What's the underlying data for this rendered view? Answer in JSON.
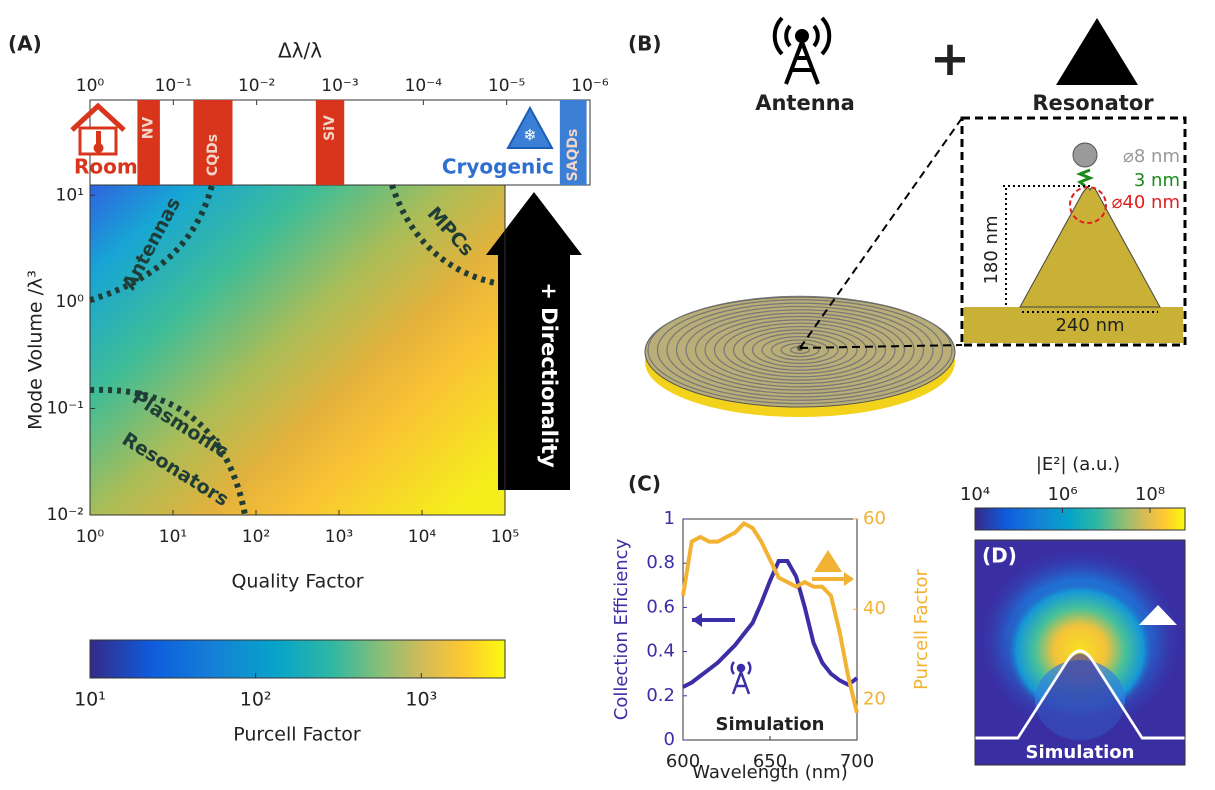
{
  "chart_data": [
    {
      "type": "heatmap",
      "panel": "(A)",
      "x_label": "Quality Factor",
      "y_label": "Mode Volume /λ³",
      "x_scale": "log",
      "y_scale": "log",
      "xlim": [
        1,
        100000
      ],
      "xticks": [
        {
          "value": 1,
          "label": "10⁰"
        },
        {
          "value": 10,
          "label": "10¹"
        },
        {
          "value": 100,
          "label": "10²"
        },
        {
          "value": 1000,
          "label": "10³"
        },
        {
          "value": 10000,
          "label": "10⁴"
        },
        {
          "value": 100000,
          "label": "10⁵"
        }
      ],
      "ylim": [
        0.01,
        12.5
      ],
      "yticks": [
        {
          "value": 0.01,
          "label": "10⁻²"
        },
        {
          "value": 0.1,
          "label": "10⁻¹"
        },
        {
          "value": 1,
          "label": "10⁰"
        },
        {
          "value": 10,
          "label": "10¹"
        }
      ],
      "x2_label": "Δλ/λ",
      "x2lim": [
        1,
        1e-06
      ],
      "x2ticks": [
        {
          "value": 1,
          "label": "10⁰"
        },
        {
          "value": 0.1,
          "label": "10⁻¹"
        },
        {
          "value": 0.01,
          "label": "10⁻²"
        },
        {
          "value": 0.001,
          "label": "10⁻³"
        },
        {
          "value": 0.0001,
          "label": "10⁻⁴"
        },
        {
          "value": 1e-05,
          "label": "10⁻⁵"
        },
        {
          "value": 1e-06,
          "label": "10⁻⁶"
        }
      ],
      "bands": [
        {
          "name": "NV",
          "color": "#d9341c",
          "range": [
            0.27,
            0.145
          ]
        },
        {
          "name": "CQDs",
          "color": "#d9341c",
          "range": [
            0.0575,
            0.0195
          ]
        },
        {
          "name": "SiV",
          "color": "#d9341c",
          "range": [
            0.00195,
            0.00089
          ]
        },
        {
          "name": "SAQDs",
          "color": "#3a7fd5",
          "range": [
            2.3e-06,
            1.1e-06
          ]
        }
      ],
      "band_labels": [
        "Room-T",
        "Cryogenic"
      ],
      "annotations": [
        "Antennas",
        "MPCs",
        "Plasmonic",
        "Resonators"
      ],
      "arrow_label": "+ Directionality",
      "colorbar": {
        "label": "Purcell Factor",
        "scale": "log",
        "lim": [
          10,
          3200
        ],
        "ticks": [
          {
            "value": 10,
            "label": "10¹"
          },
          {
            "value": 100,
            "label": "10²"
          },
          {
            "value": 1000,
            "label": "10³"
          }
        ]
      }
    },
    {
      "type": "line",
      "panel": "(C)",
      "x_label": "Wavelength (nm)",
      "y_label": "Collection Efficiency",
      "y2_label": "Purcell Factor",
      "annotation": "Simulation",
      "x": [
        600,
        605,
        610,
        615,
        620,
        625,
        630,
        635,
        640,
        645,
        650,
        655,
        660,
        665,
        670,
        675,
        680,
        685,
        690,
        695,
        700
      ],
      "xlim": [
        600,
        700
      ],
      "xticks": [
        600,
        650,
        700
      ],
      "ylim": [
        0,
        1
      ],
      "yticks": [
        0,
        0.2,
        0.4,
        0.6,
        0.8,
        1
      ],
      "y2lim": [
        11,
        60
      ],
      "y2ticks": [
        20,
        40,
        60
      ],
      "series": [
        {
          "name": "Collection Efficiency",
          "color": "#3b2ea6",
          "values": [
            0.24,
            0.26,
            0.29,
            0.32,
            0.35,
            0.39,
            0.43,
            0.48,
            0.53,
            0.62,
            0.72,
            0.81,
            0.81,
            0.74,
            0.6,
            0.44,
            0.35,
            0.3,
            0.27,
            0.25,
            0.28
          ]
        },
        {
          "name": "Purcell Factor",
          "color": "#f2b233",
          "axis": "y2",
          "values": [
            43,
            55,
            56,
            55,
            55,
            56,
            57,
            59,
            58,
            55,
            51,
            47,
            46,
            45,
            46,
            45,
            45,
            43,
            35,
            25,
            17
          ]
        }
      ]
    },
    {
      "type": "heatmap",
      "panel": "(D)",
      "annotation": "Simulation",
      "colorbar": {
        "label": "|E²| (a.u.)",
        "scale": "log",
        "lim": [
          10000,
          630000000
        ],
        "ticks": [
          {
            "value": 10000,
            "label": "10⁴"
          },
          {
            "value": 1000000,
            "label": "10⁶"
          },
          {
            "value": 100000000,
            "label": "10⁸"
          }
        ]
      }
    }
  ],
  "diagram": {
    "panel": "(B)",
    "antenna": "Antenna",
    "plus": "+",
    "resonator": "Resonator",
    "labels": [
      "⌀8 nm",
      "3 nm",
      "⌀40 nm",
      "180 nm",
      "240 nm"
    ]
  }
}
